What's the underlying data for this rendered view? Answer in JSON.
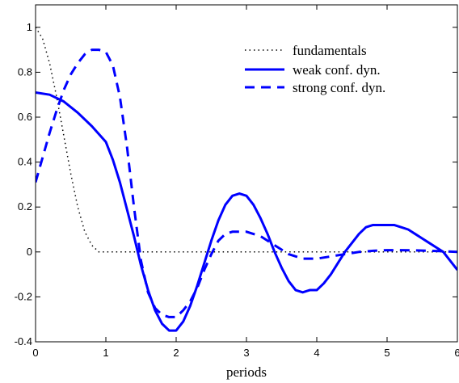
{
  "chart_data": {
    "type": "line",
    "title": "",
    "xlabel": "periods",
    "ylabel": "",
    "xlim": [
      0,
      6
    ],
    "ylim": [
      -0.4,
      1.1
    ],
    "xticks": [
      0,
      1,
      2,
      3,
      4,
      5,
      6
    ],
    "xtick_labels": [
      "0",
      "1",
      "2",
      "3",
      "4",
      "5",
      "6"
    ],
    "yticks": [
      -0.4,
      -0.2,
      0,
      0.2,
      0.4,
      0.6,
      0.8,
      1
    ],
    "ytick_labels": [
      "-0.4",
      "-0.2",
      "0",
      "0.2",
      "0.4",
      "0.6",
      "0.8",
      "1"
    ],
    "grid": false,
    "legend_position": "top-right",
    "color": "#0000ff",
    "series": [
      {
        "name": "fundamentals",
        "style": "dotted",
        "color": "#000000",
        "x": [
          0,
          0.1,
          0.2,
          0.3,
          0.4,
          0.5,
          0.6,
          0.7,
          0.8,
          0.9,
          1.0,
          2,
          3,
          4,
          5,
          6
        ],
        "y": [
          1.0,
          0.95,
          0.84,
          0.69,
          0.52,
          0.35,
          0.2,
          0.09,
          0.03,
          0.0,
          0.0,
          0,
          0,
          0,
          0,
          0
        ]
      },
      {
        "name": "weak conf. dyn.",
        "style": "solid",
        "color": "#0000ff",
        "x": [
          0,
          0.2,
          0.4,
          0.6,
          0.8,
          1.0,
          1.1,
          1.2,
          1.3,
          1.4,
          1.5,
          1.6,
          1.7,
          1.8,
          1.9,
          2.0,
          2.1,
          2.2,
          2.3,
          2.4,
          2.5,
          2.6,
          2.7,
          2.8,
          2.9,
          3.0,
          3.1,
          3.2,
          3.3,
          3.4,
          3.5,
          3.6,
          3.7,
          3.8,
          3.9,
          4.0,
          4.1,
          4.2,
          4.3,
          4.4,
          4.5,
          4.6,
          4.7,
          4.8,
          4.9,
          5.0,
          5.1,
          5.2,
          5.3,
          5.4,
          5.5,
          5.6,
          5.7,
          5.8,
          5.9,
          6.0
        ],
        "y": [
          0.71,
          0.7,
          0.67,
          0.62,
          0.56,
          0.49,
          0.41,
          0.31,
          0.19,
          0.07,
          -0.06,
          -0.17,
          -0.26,
          -0.32,
          -0.35,
          -0.35,
          -0.31,
          -0.24,
          -0.15,
          -0.05,
          0.05,
          0.14,
          0.21,
          0.25,
          0.26,
          0.25,
          0.21,
          0.15,
          0.08,
          0.0,
          -0.07,
          -0.13,
          -0.17,
          -0.18,
          -0.17,
          -0.17,
          -0.14,
          -0.1,
          -0.05,
          0.0,
          0.04,
          0.08,
          0.11,
          0.12,
          0.12,
          0.12,
          0.12,
          0.11,
          0.1,
          0.08,
          0.06,
          0.04,
          0.02,
          0.0,
          -0.04,
          -0.08
        ]
      },
      {
        "name": "strong conf. dyn.",
        "style": "dashed",
        "color": "#0000ff",
        "x": [
          0,
          0.1,
          0.2,
          0.3,
          0.4,
          0.5,
          0.6,
          0.7,
          0.8,
          0.9,
          1.0,
          1.1,
          1.2,
          1.3,
          1.4,
          1.5,
          1.6,
          1.7,
          1.8,
          1.9,
          2.0,
          2.1,
          2.2,
          2.3,
          2.4,
          2.5,
          2.6,
          2.7,
          2.8,
          2.9,
          3.0,
          3.1,
          3.2,
          3.3,
          3.4,
          3.5,
          3.6,
          3.7,
          3.8,
          3.9,
          4.0,
          4.2,
          4.4,
          4.6,
          4.8,
          5.0,
          5.2,
          5.4,
          5.6,
          5.8,
          6.0
        ],
        "y": [
          0.31,
          0.42,
          0.53,
          0.63,
          0.72,
          0.79,
          0.84,
          0.88,
          0.9,
          0.9,
          0.89,
          0.83,
          0.69,
          0.47,
          0.2,
          -0.04,
          -0.18,
          -0.25,
          -0.28,
          -0.29,
          -0.29,
          -0.26,
          -0.22,
          -0.16,
          -0.08,
          -0.01,
          0.05,
          0.08,
          0.09,
          0.09,
          0.09,
          0.08,
          0.07,
          0.05,
          0.03,
          0.01,
          -0.01,
          -0.02,
          -0.03,
          -0.03,
          -0.03,
          -0.02,
          -0.01,
          0.0,
          0.005,
          0.008,
          0.008,
          0.007,
          0.005,
          0.003,
          0.0
        ]
      }
    ]
  }
}
